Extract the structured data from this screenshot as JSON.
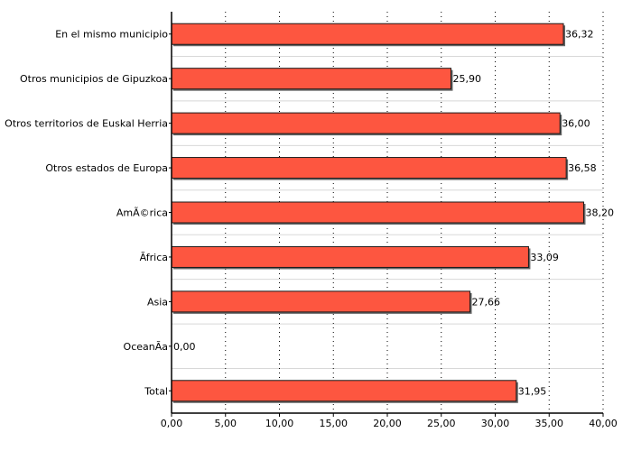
{
  "chart_data": {
    "type": "bar",
    "orientation": "horizontal",
    "categories": [
      "En el mismo municipio",
      "Otros municipios de Gipuzkoa",
      "Otros territorios de Euskal Herria",
      "Otros estados de Europa",
      "AmÃ©rica",
      "Ãfrica",
      "Asia",
      "OceanÃ­a",
      "Total"
    ],
    "values": [
      36.32,
      25.9,
      36.0,
      36.58,
      38.2,
      33.09,
      27.66,
      0.0,
      31.95
    ],
    "value_labels": [
      "36,32",
      "25,90",
      "36,00",
      "36,58",
      "38,20",
      "33,09",
      "27,66",
      "0,00",
      "31,95"
    ],
    "xlim": [
      0,
      40
    ],
    "xticks": [
      0,
      5,
      10,
      15,
      20,
      25,
      30,
      35,
      40
    ],
    "xtick_labels": [
      "0,00",
      "5,00",
      "10,00",
      "15,00",
      "20,00",
      "25,00",
      "30,00",
      "35,00",
      "40,00"
    ],
    "grid": "vertical dotted, horizontal separators",
    "legend": "none",
    "colors": {
      "bar_fill": "#fd5640",
      "bar_stroke": "#1a1a1a",
      "shadow": "#666666",
      "grid": "#000000",
      "separator": "#d8d8d8"
    }
  }
}
